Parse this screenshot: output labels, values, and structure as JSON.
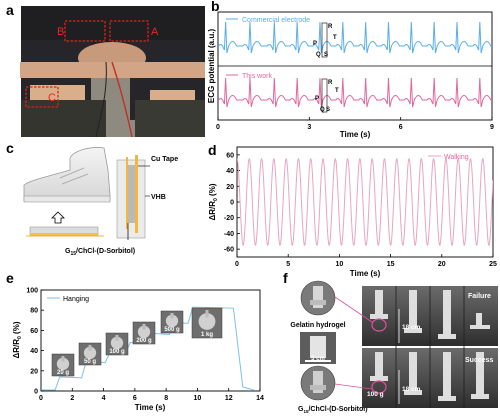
{
  "panel_labels": {
    "a": "a",
    "b": "b",
    "c": "c",
    "d": "d",
    "e": "e",
    "f": "f"
  },
  "photo_a": {
    "region_a": "A",
    "region_b": "B",
    "region_c": "C"
  },
  "panel_c": {
    "cu_tape": "Cu Tape",
    "vhb": "VHB",
    "material_main": "G",
    "material_sub": "15",
    "material_rest": "/ChCl-(D-Sorbitol)"
  },
  "panel_f": {
    "gel_label": "Gelatin hydrogel",
    "material_main": "G",
    "material_sub": "15",
    "material_rest": "/ChCl-(D-Sorbitol)",
    "scale": "3 cm",
    "distance_top": "18 cm",
    "distance_bottom": "18 cm",
    "mass": "100 g",
    "failure": "Failure",
    "success": "Success"
  },
  "chart_data": [
    {
      "id": "b",
      "type": "line",
      "xlabel": "Time (s)",
      "ylabel": "ECG potential (a.u.)",
      "xlim": [
        0,
        9
      ],
      "xticks": [
        "0",
        "3",
        "6",
        "9"
      ],
      "series": [
        {
          "name": "Commercial electrode",
          "color": "#5aaee8",
          "beat_times": [
            0.25,
            1.05,
            1.85,
            2.6,
            3.35,
            4.1,
            4.85,
            5.6,
            6.35,
            7.1,
            7.85,
            8.6
          ]
        },
        {
          "name": "This work",
          "color": "#e0679f",
          "beat_times": [
            0.25,
            1.05,
            1.85,
            2.6,
            3.35,
            4.1,
            4.85,
            5.6,
            6.35,
            7.1,
            7.85,
            8.6
          ]
        }
      ],
      "annotations": {
        "p": "P",
        "q": "Q",
        "r": "R",
        "s": "S",
        "t": "T"
      }
    },
    {
      "id": "d",
      "type": "line",
      "xlabel": "Time (s)",
      "ylabel_main": "ΔR/R",
      "ylabel_sub": "0",
      "ylabel_unit": "(%)",
      "xlim": [
        0,
        25
      ],
      "ylim": [
        -70,
        70
      ],
      "xticks": [
        "0",
        "5",
        "10",
        "15",
        "20",
        "25"
      ],
      "yticks": [
        "60",
        "40",
        "20",
        "0",
        "-20",
        "-40",
        "-60"
      ],
      "series": [
        {
          "name": "Walking",
          "color": "#e8a5c2",
          "period_s": 1.2,
          "max": 55,
          "min": -55
        }
      ]
    },
    {
      "id": "e",
      "type": "line",
      "xlabel": "Time (s)",
      "ylabel_main": "ΔR/R",
      "ylabel_sub": "0",
      "ylabel_unit": "(%)",
      "xlim": [
        0,
        14
      ],
      "ylim": [
        0,
        100
      ],
      "xticks": [
        "0",
        "2",
        "4",
        "6",
        "8",
        "10",
        "12",
        "14"
      ],
      "yticks": [
        "0",
        "20",
        "40",
        "60",
        "80",
        "100"
      ],
      "series": [
        {
          "name": "Hanging",
          "color": "#7cc0ef",
          "points": [
            [
              0,
              1
            ],
            [
              0.9,
              1
            ],
            [
              1.2,
              14
            ],
            [
              2.6,
              13
            ],
            [
              2.9,
              30
            ],
            [
              4.1,
              28
            ],
            [
              4.4,
              38
            ],
            [
              5.4,
              37
            ],
            [
              5.7,
              48
            ],
            [
              6.9,
              47
            ],
            [
              7.2,
              57
            ],
            [
              8.2,
              56
            ],
            [
              8.5,
              68
            ],
            [
              9.4,
              67
            ],
            [
              9.7,
              83
            ],
            [
              12.3,
              82
            ],
            [
              12.9,
              4
            ],
            [
              13.6,
              1
            ]
          ]
        }
      ],
      "weights": [
        "20 g",
        "50 g",
        "100 g",
        "200 g",
        "500 g",
        "1 kg"
      ]
    }
  ]
}
